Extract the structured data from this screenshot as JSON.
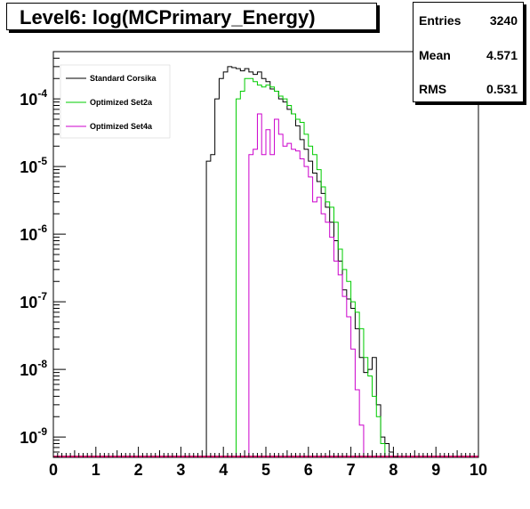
{
  "title": "Level6:  log(MCPrimary_Energy)",
  "stats": [
    {
      "name": "Entries",
      "value": "3240"
    },
    {
      "name": "Mean",
      "value": "4.571"
    },
    {
      "name": "RMS",
      "value": "0.531"
    }
  ],
  "chart_data": {
    "type": "histogram",
    "title": "Level6:  log(MCPrimary_Energy)",
    "xlim": [
      0,
      10
    ],
    "ylim": [
      5e-10,
      0.0005
    ],
    "yscale": "log",
    "x_tick_labels": [
      "0",
      "1",
      "2",
      "3",
      "4",
      "5",
      "6",
      "7",
      "8",
      "9",
      "10"
    ],
    "y_tick_labels": [
      {
        "base": "10",
        "exp": "-4",
        "value": 0.0001
      },
      {
        "base": "10",
        "exp": "-5",
        "value": 1e-05
      },
      {
        "base": "10",
        "exp": "-6",
        "value": 1e-06
      },
      {
        "base": "10",
        "exp": "-7",
        "value": 1e-07
      },
      {
        "base": "10",
        "exp": "-8",
        "value": 1e-08
      },
      {
        "base": "10",
        "exp": "-9",
        "value": 1e-09
      }
    ],
    "bin_width": 0.1,
    "legend_position": "top-left",
    "series": [
      {
        "name": "Standard Corsika",
        "color": "#000000",
        "start": 3.6,
        "values": [
          1.2e-05,
          1.5e-05,
          0.0001,
          0.0002,
          0.00025,
          0.0003,
          0.00029,
          0.00028,
          0.00026,
          0.00028,
          0.00025,
          0.00023,
          0.00025,
          0.0002,
          0.00018,
          0.00014,
          0.00013,
          0.0001,
          9e-05,
          7e-05,
          6e-05,
          4e-05,
          2.5e-05,
          1.8e-05,
          1.2e-05,
          8e-06,
          6e-06,
          4e-06,
          2.5e-06,
          1.5e-06,
          8e-07,
          4e-07,
          1.5e-07,
          1.1e-07,
          8e-08,
          4e-08,
          1.5e-08,
          9e-09,
          1e-08,
          1.5e-08,
          3e-09,
          1e-09,
          8e-10,
          6e-10,
          5e-10
        ]
      },
      {
        "name": "Optimized Set2a",
        "color": "#00cc00",
        "start": 4.3,
        "values": [
          0.0001,
          0.00013,
          0.0002,
          0.0002,
          0.00018,
          0.00016,
          0.00015,
          0.00016,
          0.00015,
          0.00013,
          0.00011,
          0.0001,
          8e-05,
          6e-05,
          5e-05,
          4.5e-05,
          3e-05,
          2e-05,
          1.5e-05,
          9e-06,
          5e-06,
          3e-06,
          2.5e-06,
          1.5e-06,
          6e-07,
          3e-07,
          2e-07,
          1e-07,
          7e-08,
          4e-08,
          1.5e-08,
          8e-09,
          4e-09,
          2e-09,
          8e-10
        ]
      },
      {
        "name": "Optimized Set4a",
        "color": "#cc00cc",
        "start": 4.6,
        "values": [
          1.5e-05,
          1.8e-05,
          6e-05,
          1.5e-05,
          3.5e-05,
          1.5e-05,
          5e-05,
          3e-05,
          2e-05,
          2.2e-05,
          1.8e-05,
          1.7e-05,
          1.3e-05,
          1e-05,
          7e-06,
          3e-06,
          3.5e-06,
          2e-06,
          1.5e-06,
          9e-07,
          4e-07,
          2.5e-07,
          1.2e-07,
          6e-08,
          2e-08,
          5e-09,
          1.5e-09
        ]
      }
    ]
  }
}
